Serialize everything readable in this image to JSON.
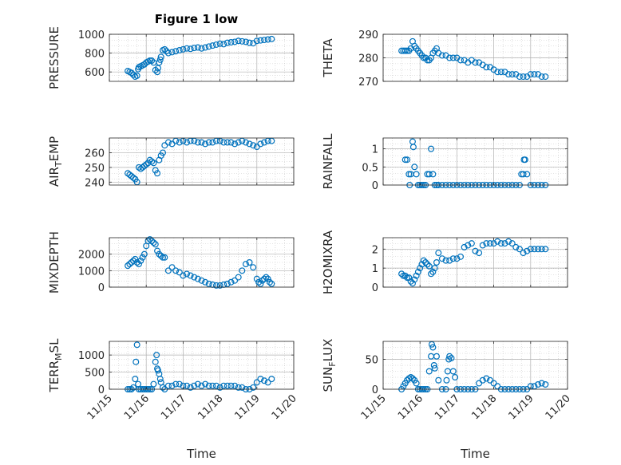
{
  "figure_title": "Figure 1 low",
  "colors": {
    "marker": "#0072BD",
    "axes": "#262626",
    "grid": "#c8c8c8"
  },
  "chart_data": [
    {
      "type": "scatter",
      "title": "Figure 1 low",
      "ylabel": "PRESSURE",
      "xlabel": "",
      "xlim": [
        15,
        20
      ],
      "ylim": [
        500,
        1000
      ],
      "xticks": [
        "11/15",
        "11/16",
        "11/17",
        "11/18",
        "11/19",
        "11/20"
      ],
      "show_xticklabels": false,
      "yticks": [
        600,
        800,
        1000
      ],
      "grid": true,
      "series": [
        {
          "x": [
            15.5,
            15.55,
            15.6,
            15.65,
            15.7,
            15.75,
            15.78,
            15.8,
            15.85,
            15.9,
            15.95,
            16.0,
            16.05,
            16.1,
            16.15,
            16.2,
            16.25,
            16.3,
            16.32,
            16.35,
            16.38,
            16.4,
            16.45,
            16.5,
            16.55,
            16.6,
            16.7,
            16.8,
            16.9,
            17.0,
            17.1,
            17.2,
            17.3,
            17.4,
            17.5,
            17.6,
            17.7,
            17.8,
            17.9,
            18.0,
            18.1,
            18.2,
            18.3,
            18.4,
            18.5,
            18.6,
            18.7,
            18.8,
            18.9,
            19.0,
            19.1,
            19.2,
            19.3,
            19.4
          ],
          "y": [
            610,
            600,
            590,
            570,
            550,
            560,
            630,
            650,
            660,
            670,
            680,
            700,
            710,
            720,
            720,
            700,
            620,
            600,
            640,
            700,
            730,
            760,
            830,
            840,
            820,
            800,
            810,
            820,
            830,
            840,
            850,
            845,
            855,
            860,
            850,
            860,
            870,
            880,
            890,
            900,
            895,
            910,
            915,
            920,
            930,
            925,
            920,
            910,
            905,
            930,
            935,
            940,
            945,
            950
          ]
        }
      ]
    },
    {
      "type": "scatter",
      "title": "",
      "ylabel": "THETA",
      "xlabel": "",
      "xlim": [
        15,
        20
      ],
      "ylim": [
        270,
        290
      ],
      "xticks": [
        "11/15",
        "11/16",
        "11/17",
        "11/18",
        "11/19",
        "11/20"
      ],
      "show_xticklabels": false,
      "yticks": [
        270,
        280,
        290
      ],
      "grid": true,
      "series": [
        {
          "x": [
            15.5,
            15.55,
            15.6,
            15.65,
            15.7,
            15.75,
            15.8,
            15.85,
            15.9,
            15.95,
            16.0,
            16.05,
            16.1,
            16.15,
            16.2,
            16.25,
            16.3,
            16.35,
            16.4,
            16.45,
            16.5,
            16.6,
            16.7,
            16.8,
            16.9,
            17.0,
            17.1,
            17.2,
            17.3,
            17.4,
            17.5,
            17.6,
            17.7,
            17.8,
            17.9,
            18.0,
            18.1,
            18.2,
            18.3,
            18.4,
            18.5,
            18.6,
            18.7,
            18.8,
            18.9,
            19.0,
            19.1,
            19.2,
            19.3,
            19.4
          ],
          "y": [
            283,
            283,
            283,
            283,
            283,
            284,
            287,
            285,
            284,
            283,
            282,
            281,
            280,
            280,
            279,
            279,
            280,
            282,
            283,
            284,
            282,
            281,
            281,
            280,
            280,
            280,
            279,
            279,
            278,
            279,
            278,
            278,
            277,
            276,
            276,
            275,
            274,
            274,
            274,
            273,
            273,
            273,
            272,
            272,
            272,
            273,
            273,
            273,
            272,
            272
          ]
        }
      ]
    },
    {
      "type": "scatter",
      "title": "",
      "ylabel": "AIR_TEMP",
      "xlabel": "",
      "xlim": [
        15,
        20
      ],
      "ylim": [
        238,
        270
      ],
      "xticks": [
        "11/15",
        "11/16",
        "11/17",
        "11/18",
        "11/19",
        "11/20"
      ],
      "show_xticklabels": false,
      "yticks": [
        240,
        250,
        260
      ],
      "grid": true,
      "series": [
        {
          "x": [
            15.5,
            15.55,
            15.6,
            15.65,
            15.7,
            15.75,
            15.8,
            15.85,
            15.9,
            15.95,
            16.0,
            16.05,
            16.1,
            16.15,
            16.2,
            16.25,
            16.3,
            16.35,
            16.4,
            16.45,
            16.5,
            16.6,
            16.7,
            16.8,
            16.9,
            17.0,
            17.1,
            17.2,
            17.3,
            17.4,
            17.5,
            17.6,
            17.7,
            17.8,
            17.9,
            18.0,
            18.1,
            18.2,
            18.3,
            18.4,
            18.5,
            18.6,
            18.7,
            18.8,
            18.9,
            19.0,
            19.1,
            19.2,
            19.3,
            19.4
          ],
          "y": [
            246,
            245,
            244,
            243,
            242,
            240,
            250,
            249,
            250,
            251,
            252,
            253,
            255,
            254,
            253,
            248,
            246,
            255,
            258,
            260,
            265,
            267,
            266,
            268,
            267,
            268,
            267,
            268,
            268,
            267,
            267,
            266,
            267,
            267,
            268,
            268,
            267,
            267,
            267,
            266,
            267,
            268,
            267,
            266,
            265,
            264,
            266,
            267,
            268,
            268
          ]
        }
      ]
    },
    {
      "type": "scatter",
      "title": "",
      "ylabel": "RAINFALL",
      "xlabel": "",
      "xlim": [
        15,
        20
      ],
      "ylim": [
        0,
        1.3
      ],
      "xticks": [
        "11/15",
        "11/16",
        "11/17",
        "11/18",
        "11/19",
        "11/20"
      ],
      "show_xticklabels": false,
      "yticks": [
        0,
        0.5,
        1
      ],
      "grid": true,
      "series": [
        {
          "x": [
            15.6,
            15.65,
            15.7,
            15.72,
            15.75,
            15.8,
            15.82,
            15.85,
            15.9,
            15.95,
            16.0,
            16.05,
            16.1,
            16.15,
            16.2,
            16.25,
            16.3,
            16.35,
            16.4,
            16.45,
            16.5,
            16.6,
            16.7,
            16.8,
            16.9,
            17.0,
            17.1,
            17.2,
            17.3,
            17.4,
            17.5,
            17.6,
            17.7,
            17.8,
            17.9,
            18.0,
            18.1,
            18.2,
            18.3,
            18.4,
            18.5,
            18.6,
            18.7,
            18.75,
            18.8,
            18.82,
            18.85,
            18.9,
            19.0,
            19.1,
            19.2,
            19.3,
            19.4
          ],
          "y": [
            0.7,
            0.7,
            0.3,
            0,
            0.3,
            1.2,
            1.05,
            0.5,
            0.3,
            0,
            0,
            0,
            0,
            0,
            0.3,
            0.3,
            1.0,
            0.3,
            0,
            0,
            0,
            0,
            0,
            0,
            0,
            0,
            0,
            0,
            0,
            0,
            0,
            0,
            0,
            0,
            0,
            0,
            0,
            0,
            0,
            0,
            0,
            0,
            0,
            0.3,
            0.3,
            0.7,
            0.7,
            0.3,
            0,
            0,
            0,
            0,
            0
          ]
        }
      ]
    },
    {
      "type": "scatter",
      "title": "",
      "ylabel": "MIXDEPTH",
      "xlabel": "",
      "xlim": [
        15,
        20
      ],
      "ylim": [
        0,
        3000
      ],
      "xticks": [
        "11/15",
        "11/16",
        "11/17",
        "11/18",
        "11/19",
        "11/20"
      ],
      "show_xticklabels": false,
      "yticks": [
        0,
        1000,
        2000
      ],
      "grid": true,
      "series": [
        {
          "x": [
            15.5,
            15.55,
            15.6,
            15.65,
            15.7,
            15.75,
            15.8,
            15.85,
            15.9,
            15.95,
            16.0,
            16.05,
            16.1,
            16.15,
            16.2,
            16.25,
            16.3,
            16.35,
            16.4,
            16.45,
            16.5,
            16.6,
            16.7,
            16.8,
            16.9,
            17.0,
            17.1,
            17.2,
            17.3,
            17.4,
            17.5,
            17.6,
            17.7,
            17.8,
            17.9,
            18.0,
            18.1,
            18.2,
            18.3,
            18.4,
            18.5,
            18.6,
            18.7,
            18.8,
            18.9,
            19.0,
            19.05,
            19.1,
            19.15,
            19.2,
            19.25,
            19.3,
            19.35,
            19.4
          ],
          "y": [
            1300,
            1400,
            1500,
            1600,
            1700,
            1500,
            1400,
            1600,
            1800,
            2000,
            2500,
            2800,
            2900,
            2800,
            2700,
            2600,
            2200,
            2000,
            1900,
            1800,
            1800,
            1000,
            1200,
            1000,
            900,
            700,
            800,
            700,
            600,
            500,
            400,
            300,
            200,
            150,
            100,
            100,
            150,
            200,
            300,
            400,
            600,
            1000,
            1400,
            1500,
            1200,
            500,
            300,
            200,
            400,
            500,
            600,
            500,
            300,
            200
          ]
        }
      ]
    },
    {
      "type": "scatter",
      "title": "",
      "ylabel": "H2OMIXRA",
      "xlabel": "",
      "xlim": [
        15,
        20
      ],
      "ylim": [
        0,
        2.6
      ],
      "xticks": [
        "11/15",
        "11/16",
        "11/17",
        "11/18",
        "11/19",
        "11/20"
      ],
      "show_xticklabels": false,
      "yticks": [
        0,
        1,
        2
      ],
      "grid": true,
      "series": [
        {
          "x": [
            15.5,
            15.55,
            15.6,
            15.65,
            15.7,
            15.75,
            15.8,
            15.85,
            15.9,
            15.95,
            16.0,
            16.05,
            16.1,
            16.15,
            16.2,
            16.25,
            16.3,
            16.35,
            16.4,
            16.45,
            16.5,
            16.6,
            16.7,
            16.8,
            16.9,
            17.0,
            17.1,
            17.2,
            17.3,
            17.4,
            17.5,
            17.6,
            17.7,
            17.8,
            17.9,
            18.0,
            18.1,
            18.2,
            18.3,
            18.4,
            18.5,
            18.6,
            18.7,
            18.8,
            18.9,
            19.0,
            19.1,
            19.2,
            19.3,
            19.4
          ],
          "y": [
            0.7,
            0.6,
            0.6,
            0.5,
            0.5,
            0.3,
            0.2,
            0.4,
            0.6,
            0.8,
            1.0,
            1.2,
            1.4,
            1.3,
            1.2,
            1.1,
            0.7,
            0.8,
            1.0,
            1.3,
            1.8,
            1.5,
            1.4,
            1.4,
            1.5,
            1.5,
            1.6,
            2.1,
            2.2,
            2.3,
            1.9,
            1.8,
            2.2,
            2.3,
            2.3,
            2.3,
            2.4,
            2.3,
            2.3,
            2.4,
            2.3,
            2.1,
            2.0,
            1.8,
            1.9,
            2.0,
            2.0,
            2.0,
            2.0,
            2.0
          ]
        }
      ]
    },
    {
      "type": "scatter",
      "title": "",
      "ylabel": "TERR_MSL",
      "xlabel": "Time",
      "xlim": [
        15,
        20
      ],
      "ylim": [
        0,
        1400
      ],
      "xticks": [
        "11/15",
        "11/16",
        "11/17",
        "11/18",
        "11/19",
        "11/20"
      ],
      "show_xticklabels": true,
      "yticks": [
        0,
        500,
        1000
      ],
      "grid": true,
      "series": [
        {
          "x": [
            15.5,
            15.55,
            15.6,
            15.65,
            15.7,
            15.72,
            15.75,
            15.78,
            15.8,
            15.85,
            15.9,
            15.95,
            16.0,
            16.05,
            16.1,
            16.15,
            16.2,
            16.25,
            16.28,
            16.3,
            16.32,
            16.35,
            16.38,
            16.4,
            16.45,
            16.5,
            16.6,
            16.7,
            16.8,
            16.9,
            17.0,
            17.1,
            17.2,
            17.3,
            17.4,
            17.5,
            17.6,
            17.7,
            17.8,
            17.9,
            18.0,
            18.1,
            18.2,
            18.3,
            18.4,
            18.5,
            18.6,
            18.7,
            18.8,
            18.9,
            19.0,
            19.1,
            19.2,
            19.3,
            19.4
          ],
          "y": [
            0,
            0,
            0,
            50,
            300,
            800,
            1300,
            150,
            0,
            0,
            0,
            0,
            0,
            0,
            0,
            0,
            150,
            800,
            1000,
            600,
            550,
            450,
            300,
            200,
            50,
            0,
            100,
            100,
            150,
            150,
            100,
            100,
            50,
            100,
            150,
            100,
            150,
            100,
            100,
            100,
            50,
            100,
            100,
            100,
            100,
            50,
            50,
            0,
            0,
            50,
            200,
            300,
            250,
            200,
            300
          ]
        }
      ]
    },
    {
      "type": "scatter",
      "title": "",
      "ylabel": "SUN_FLUX",
      "xlabel": "Time",
      "xlim": [
        15,
        20
      ],
      "ylim": [
        0,
        80
      ],
      "xticks": [
        "11/15",
        "11/16",
        "11/17",
        "11/18",
        "11/19",
        "11/20"
      ],
      "show_xticklabels": true,
      "yticks": [
        0,
        50
      ],
      "grid": true,
      "series": [
        {
          "x": [
            15.5,
            15.55,
            15.6,
            15.65,
            15.7,
            15.75,
            15.8,
            15.85,
            15.9,
            15.95,
            16.0,
            16.05,
            16.1,
            16.15,
            16.2,
            16.25,
            16.3,
            16.32,
            16.35,
            16.38,
            16.4,
            16.45,
            16.5,
            16.6,
            16.7,
            16.72,
            16.75,
            16.78,
            16.8,
            16.85,
            16.9,
            16.95,
            17.0,
            17.1,
            17.2,
            17.3,
            17.4,
            17.5,
            17.6,
            17.7,
            17.8,
            17.9,
            18.0,
            18.1,
            18.2,
            18.3,
            18.4,
            18.5,
            18.6,
            18.7,
            18.8,
            18.9,
            19.0,
            19.1,
            19.2,
            19.3,
            19.4
          ],
          "y": [
            0,
            5,
            10,
            15,
            18,
            20,
            18,
            15,
            10,
            0,
            0,
            0,
            0,
            0,
            0,
            30,
            55,
            75,
            70,
            40,
            35,
            55,
            15,
            0,
            0,
            15,
            30,
            50,
            55,
            52,
            30,
            20,
            0,
            0,
            0,
            0,
            0,
            0,
            10,
            15,
            18,
            15,
            10,
            5,
            0,
            0,
            0,
            0,
            0,
            0,
            0,
            0,
            5,
            5,
            8,
            10,
            8
          ]
        }
      ]
    }
  ]
}
